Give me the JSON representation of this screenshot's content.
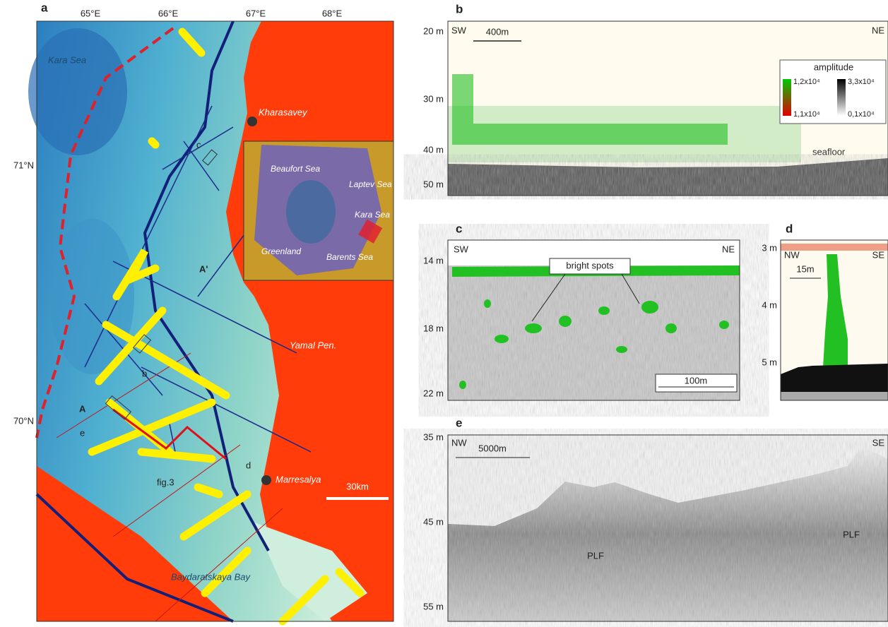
{
  "panel_a": {
    "label": "a",
    "lon_labels": [
      "65°E",
      "66°E",
      "67°E",
      "68°E"
    ],
    "lat_labels": [
      "71°N",
      "70°N"
    ],
    "places": {
      "kara": "Kara Sea",
      "kharasavey": "Kharasavey",
      "yamal": "Yamal Pen.",
      "marresalya": "Marresalya",
      "baydaratskaya": "Baydaratskaya Bay"
    },
    "markers": {
      "A": "A",
      "A2": "A'",
      "b": "b",
      "c": "c",
      "d": "d",
      "e": "e",
      "fig3": "fig.3"
    },
    "scale": "30km",
    "inset": {
      "beaufort": "Beaufort Sea",
      "laptev": "Laptev Sea",
      "kara": "Kara Sea",
      "greenland": "Greenland",
      "barents": "Barents Sea"
    }
  },
  "panel_b": {
    "label": "b",
    "depths": [
      "20 m",
      "30 m",
      "40 m",
      "50 m"
    ],
    "left": "SW",
    "right": "NE",
    "scale": "400m",
    "legend_title": "amplitude",
    "legend": [
      "1,2x10⁴",
      "1,1x10⁴",
      "3,3x10⁴",
      "0,1x10⁴"
    ],
    "seafloor": "seafloor"
  },
  "panel_c": {
    "label": "c",
    "depths": [
      "14 m",
      "18 m",
      "22 m"
    ],
    "left": "SW",
    "right": "NE",
    "annotation": "bright spots",
    "scale": "100m"
  },
  "panel_d": {
    "label": "d",
    "depths": [
      "3 m",
      "4 m",
      "5 m"
    ],
    "left": "NW",
    "right": "SE",
    "scale": "15m"
  },
  "panel_e": {
    "label": "e",
    "depths": [
      "35 m",
      "45 m",
      "55 m"
    ],
    "left": "NW",
    "right": "SE",
    "scale": "5000m",
    "features": [
      "PLF",
      "PLF"
    ]
  }
}
